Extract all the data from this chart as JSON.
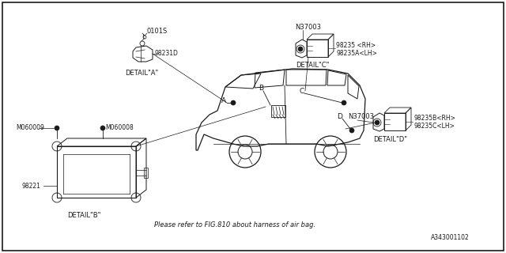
{
  "bg_color": "#ffffff",
  "border_color": "#000000",
  "line_color": "#1a1a1a",
  "text_color": "#1a1a1a",
  "footer_text": "Please refer to FIG.810 about harness of air bag.",
  "diagram_id": "A343001102",
  "labels": {
    "part_0101S": "0101S",
    "part_98231D": "98231D",
    "detail_A": "DETAIL\"A\"",
    "part_N37003_top": "N37003",
    "part_N37003_bot": "N37003",
    "part_98235_RH": "98235 <RH>",
    "part_98235A_LH": "98235A<LH>",
    "detail_C": "DETAIL\"C\"",
    "part_M060009": "M060009",
    "part_M060008": "M060008",
    "part_98221": "98221",
    "detail_B": "DETAIL\"B\"",
    "part_98235B_RH": "98235B<RH>",
    "part_98235C_LH": "98235C<LH>",
    "detail_D": "DETAIL\"D\"",
    "label_A": "A",
    "label_B": "B",
    "label_C": "C",
    "label_D": "D"
  },
  "figsize": [
    6.4,
    3.2
  ],
  "dpi": 100
}
